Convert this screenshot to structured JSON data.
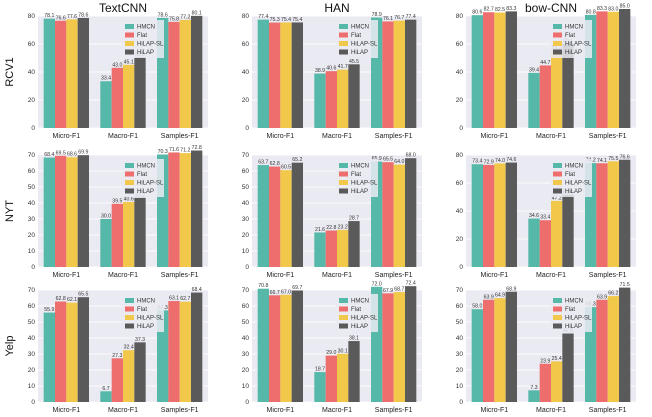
{
  "colors": {
    "HMCN": "#55b8a8",
    "Flat": "#ee6d6d",
    "HiLAP-SL": "#f2c84b",
    "HiLAP": "#5a5a5a"
  },
  "column_titles": [
    "TextCNN",
    "HAN",
    "bow-CNN"
  ],
  "row_labels": [
    "RCV1",
    "NYT",
    "Yelp"
  ],
  "chart_data": [
    {
      "type": "bar",
      "row": 0,
      "col": 0,
      "ylim": [
        0,
        80
      ],
      "yticks": [
        0,
        20,
        40,
        60,
        80
      ],
      "categories": [
        "Micro-F1",
        "Macro-F1",
        "Samples-F1"
      ],
      "series": [
        {
          "name": "HMCN",
          "values": [
            78.1,
            33.4,
            78.6
          ]
        },
        {
          "name": "Flat",
          "values": [
            76.6,
            43.0,
            75.8
          ]
        },
        {
          "name": "HiLAP-SL",
          "values": [
            77.6,
            45.1,
            77.2
          ]
        },
        {
          "name": "HiLAP",
          "values": [
            78.6,
            50.5,
            80.1
          ]
        }
      ]
    },
    {
      "type": "bar",
      "row": 0,
      "col": 1,
      "ylim": [
        0,
        80
      ],
      "yticks": [
        0,
        20,
        40,
        60,
        80
      ],
      "categories": [
        "Micro-F1",
        "Macro-F1",
        "Samples-F1"
      ],
      "series": [
        {
          "name": "HMCN",
          "values": [
            77.4,
            38.9,
            78.9
          ]
        },
        {
          "name": "Flat",
          "values": [
            75.3,
            40.6,
            76.1
          ]
        },
        {
          "name": "HiLAP-SL",
          "values": [
            75.4,
            41.7,
            76.7
          ]
        },
        {
          "name": "HiLAP",
          "values": [
            75.4,
            45.5,
            77.4
          ]
        }
      ]
    },
    {
      "type": "bar",
      "row": 0,
      "col": 2,
      "ylim": [
        0,
        80
      ],
      "yticks": [
        0,
        20,
        40,
        60,
        80
      ],
      "categories": [
        "Micro-F1",
        "Macro-F1",
        "Samples-F1"
      ],
      "series": [
        {
          "name": "HMCN",
          "values": [
            80.6,
            39.4,
            80.8
          ]
        },
        {
          "name": "Flat",
          "values": [
            82.7,
            44.7,
            83.3
          ]
        },
        {
          "name": "HiLAP-SL",
          "values": [
            82.5,
            55.3,
            83.0
          ]
        },
        {
          "name": "HiLAP",
          "values": [
            83.3,
            60.1,
            85.0
          ]
        }
      ]
    },
    {
      "type": "bar",
      "row": 1,
      "col": 0,
      "ylim": [
        0,
        70
      ],
      "yticks": [
        0,
        10,
        20,
        30,
        40,
        50,
        60,
        70
      ],
      "categories": [
        "Micro-F1",
        "Macro-F1",
        "Samples-F1"
      ],
      "series": [
        {
          "name": "HMCN",
          "values": [
            68.4,
            30.0,
            70.3
          ]
        },
        {
          "name": "Flat",
          "values": [
            69.5,
            39.5,
            71.6
          ]
        },
        {
          "name": "HiLAP-SL",
          "values": [
            68.6,
            40.6,
            71.2
          ]
        },
        {
          "name": "HiLAP",
          "values": [
            69.9,
            43.2,
            72.8
          ]
        }
      ]
    },
    {
      "type": "bar",
      "row": 1,
      "col": 1,
      "ylim": [
        0,
        70
      ],
      "yticks": [
        0,
        10,
        20,
        30,
        40,
        50,
        60,
        70
      ],
      "categories": [
        "Micro-F1",
        "Macro-F1",
        "Samples-F1"
      ],
      "series": [
        {
          "name": "HMCN",
          "values": [
            63.7,
            21.6,
            65.9
          ]
        },
        {
          "name": "Flat",
          "values": [
            62.8,
            22.8,
            65.5
          ]
        },
        {
          "name": "HiLAP-SL",
          "values": [
            60.5,
            23.2,
            64.0
          ]
        },
        {
          "name": "HiLAP",
          "values": [
            65.2,
            28.7,
            68.0
          ]
        }
      ]
    },
    {
      "type": "bar",
      "row": 1,
      "col": 2,
      "ylim": [
        0,
        80
      ],
      "yticks": [
        0,
        20,
        40,
        60,
        80
      ],
      "categories": [
        "Micro-F1",
        "Macro-F1",
        "Samples-F1"
      ],
      "series": [
        {
          "name": "HMCN",
          "values": [
            73.4,
            34.6,
            74.2
          ]
        },
        {
          "name": "Flat",
          "values": [
            72.9,
            33.4,
            74.1
          ]
        },
        {
          "name": "HiLAP-SL",
          "values": [
            74.0,
            47.2,
            75.5
          ]
        },
        {
          "name": "HiLAP",
          "values": [
            74.6,
            51.6,
            76.6
          ]
        }
      ]
    },
    {
      "type": "bar",
      "row": 2,
      "col": 0,
      "ylim": [
        0,
        70
      ],
      "yticks": [
        0,
        10,
        20,
        30,
        40,
        50,
        60,
        70
      ],
      "categories": [
        "Micro-F1",
        "Macro-F1",
        "Samples-F1"
      ],
      "series": [
        {
          "name": "HMCN",
          "values": [
            55.9,
            6.7,
            57.3
          ]
        },
        {
          "name": "Flat",
          "values": [
            62.8,
            27.3,
            63.1
          ]
        },
        {
          "name": "HiLAP-SL",
          "values": [
            62.1,
            32.4,
            62.7
          ]
        },
        {
          "name": "HiLAP",
          "values": [
            65.5,
            37.3,
            68.4
          ]
        }
      ]
    },
    {
      "type": "bar",
      "row": 2,
      "col": 1,
      "ylim": [
        0,
        70
      ],
      "yticks": [
        0,
        10,
        20,
        30,
        40,
        50,
        60,
        70
      ],
      "categories": [
        "Micro-F1",
        "Macro-F1",
        "Samples-F1"
      ],
      "series": [
        {
          "name": "HMCN",
          "values": [
            70.8,
            18.7,
            72.0
          ]
        },
        {
          "name": "Flat",
          "values": [
            66.7,
            29.0,
            67.9
          ]
        },
        {
          "name": "HiLAP-SL",
          "values": [
            67.0,
            30.1,
            68.7
          ]
        },
        {
          "name": "HiLAP",
          "values": [
            69.7,
            38.1,
            72.4
          ]
        }
      ]
    },
    {
      "type": "bar",
      "row": 2,
      "col": 2,
      "ylim": [
        0,
        70
      ],
      "yticks": [
        0,
        10,
        20,
        30,
        40,
        50,
        60,
        70
      ],
      "categories": [
        "Micro-F1",
        "Macro-F1",
        "Samples-F1"
      ],
      "series": [
        {
          "name": "HMCN",
          "values": [
            58.0,
            7.3,
            59.3
          ]
        },
        {
          "name": "Flat",
          "values": [
            63.9,
            23.9,
            63.9
          ]
        },
        {
          "name": "HiLAP-SL",
          "values": [
            64.9,
            25.4,
            66.2
          ]
        },
        {
          "name": "HiLAP",
          "values": [
            68.9,
            42.8,
            71.5
          ]
        }
      ]
    }
  ]
}
